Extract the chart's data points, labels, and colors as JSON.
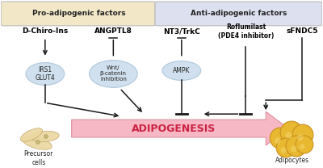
{
  "bg_color": "#ffffff",
  "pro_box_color": "#f2e8c8",
  "anti_box_color": "#dde0ef",
  "ellipse_color": "#d0e0ee",
  "ellipse_edge": "#b0c8dc",
  "line_color": "#1a1a1a",
  "adipo_arrow_color": "#f5b8c4",
  "adipo_arrow_edge": "#e090a0",
  "adipo_text_color": "#cc2244",
  "pro_label": "Pro-adipogenic factors",
  "anti_label": "Anti-adipogenic factors",
  "adipo_label": "ADIPOGENESIS",
  "precursor_label": "Precursor\ncells",
  "adipocytes_label": "Adipocytes",
  "cell_color": "#e8d8a0",
  "cell_edge": "#c0a840",
  "precursor_color": "#e8d8a8",
  "precursor_edge": "#b8a060"
}
